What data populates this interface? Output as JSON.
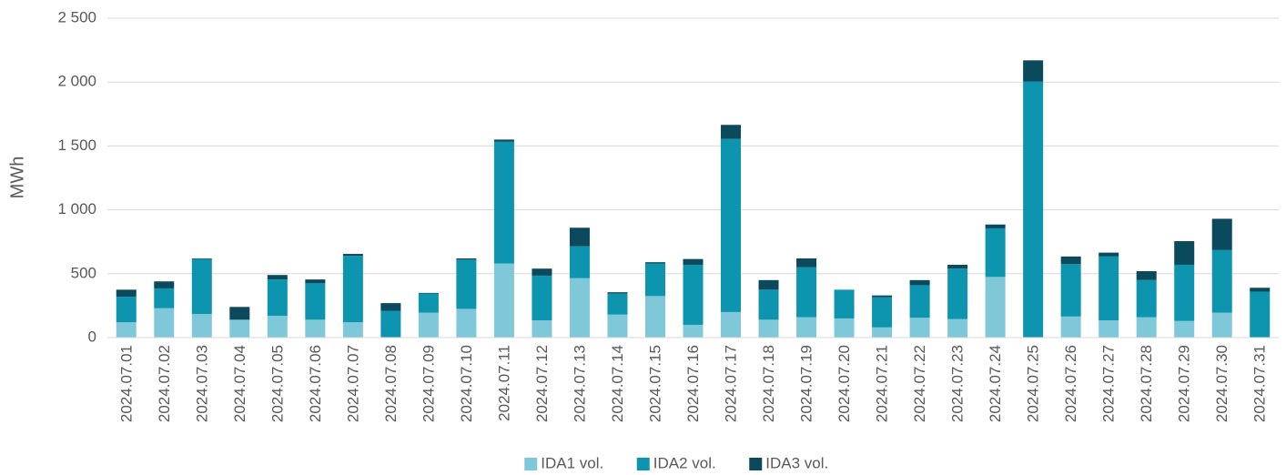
{
  "chart_data": {
    "type": "stacked_bar",
    "y_label": "MWh",
    "categories": [
      "2024.07.01",
      "2024.07.02",
      "2024.07.03",
      "2024.07.04",
      "2024.07.05",
      "2024.07.06",
      "2024.07.07",
      "2024.07.08",
      "2024.07.09",
      "2024.07.10",
      "2024.07.11",
      "2024.07.12",
      "2024.07.13",
      "2024.07.14",
      "2024.07.15",
      "2024.07.16",
      "2024.07.17",
      "2024.07.18",
      "2024.07.19",
      "2024.07.20",
      "2024.07.21",
      "2024.07.22",
      "2024.07.23",
      "2024.07.24",
      "2024.07.25",
      "2024.07.26",
      "2024.07.27",
      "2024.07.28",
      "2024.07.29",
      "2024.07.30",
      "2024.07.31"
    ],
    "series": [
      {
        "name": "IDA1 vol.",
        "color": "#7fc8d9",
        "values": [
          120,
          230,
          185,
          140,
          170,
          140,
          120,
          0,
          195,
          225,
          580,
          135,
          465,
          180,
          325,
          100,
          200,
          140,
          160,
          150,
          80,
          155,
          145,
          475,
          0,
          165,
          135,
          160,
          130,
          195,
          0
        ]
      },
      {
        "name": "IDA2 vol.",
        "color": "#0d94ae",
        "values": [
          200,
          155,
          430,
          0,
          285,
          285,
          520,
          210,
          150,
          385,
          955,
          350,
          250,
          165,
          255,
          470,
          1355,
          235,
          390,
          225,
          235,
          255,
          395,
          380,
          2005,
          410,
          500,
          290,
          440,
          490,
          360
        ]
      },
      {
        "name": "IDA3 vol.",
        "color": "#0b4a5c",
        "values": [
          55,
          55,
          5,
          100,
          35,
          30,
          15,
          60,
          5,
          10,
          15,
          55,
          145,
          10,
          10,
          45,
          110,
          75,
          70,
          0,
          15,
          40,
          30,
          30,
          165,
          60,
          30,
          70,
          185,
          245,
          30
        ]
      }
    ],
    "ylim": [
      0,
      2500
    ],
    "yticks": [
      0,
      500,
      {
        "value": 1000,
        "label": "1 000"
      },
      {
        "value": 1500,
        "label": "1 500"
      },
      {
        "value": 2000,
        "label": "2 000"
      },
      {
        "value": 2500,
        "label": "2 500"
      }
    ],
    "grid": true,
    "legend": "bottom"
  }
}
